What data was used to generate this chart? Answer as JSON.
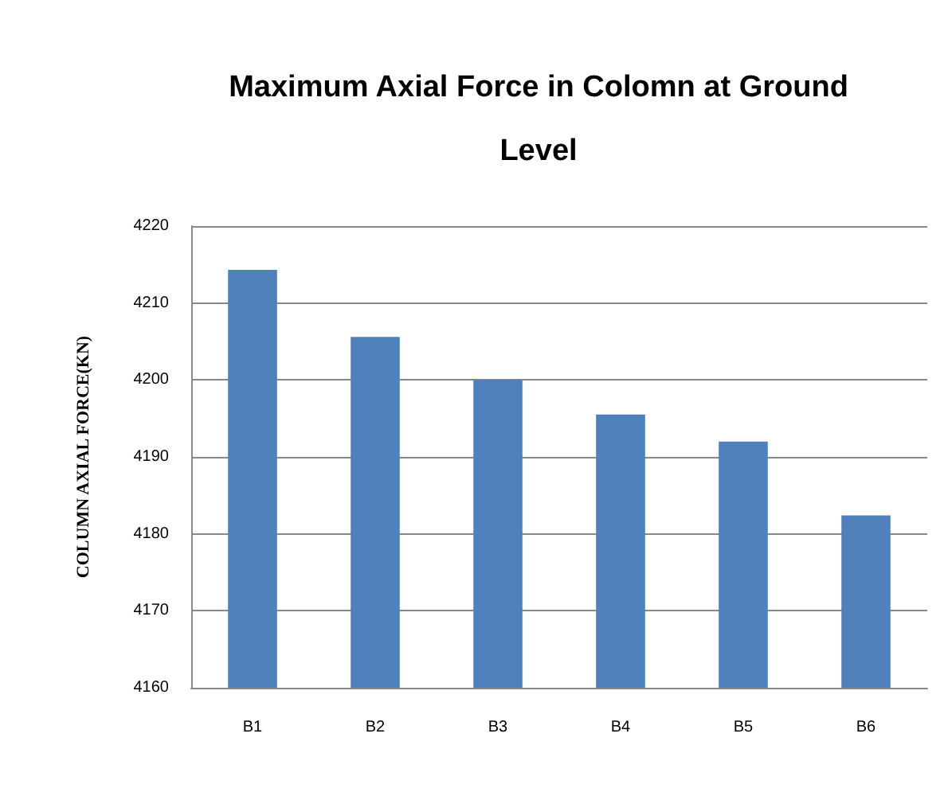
{
  "chart_data": {
    "type": "bar",
    "title": "Maximum Axial Force in Colomn at Ground\nLevel",
    "ylabel": "COLUMN AXIAL FORCE(KN)",
    "categories": [
      "B1",
      "B2",
      "B3",
      "B4",
      "B5",
      "B6"
    ],
    "values": [
      4214.3,
      4205.6,
      4200,
      4195.5,
      4192,
      4182.4
    ],
    "color": "#4f81bd",
    "ylim": [
      4160,
      4220
    ],
    "yticks": [
      4160,
      4170,
      4180,
      4190,
      4200,
      4210,
      4220
    ],
    "grid": "y"
  }
}
